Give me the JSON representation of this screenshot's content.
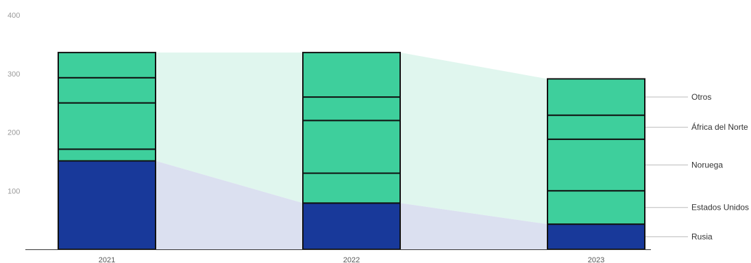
{
  "chart_data": {
    "type": "bar",
    "stacked": true,
    "categories": [
      "2021",
      "2022",
      "2023"
    ],
    "ylim": [
      0,
      400
    ],
    "yticks": [
      "100",
      "200",
      "300",
      "400"
    ],
    "grid": false,
    "legend_placement": "right",
    "series": [
      {
        "name": "Rusia",
        "values": [
          151,
          79,
          43
        ],
        "color": "#18399a"
      },
      {
        "name": "Estados Unidos",
        "values": [
          20,
          51,
          57
        ],
        "color": "#3ecf9c"
      },
      {
        "name": "Noruega",
        "values": [
          79,
          90,
          88
        ],
        "color": "#3ecf9c"
      },
      {
        "name": "África del Norte",
        "values": [
          43,
          40,
          41
        ],
        "color": "#3ecf9c"
      },
      {
        "name": "Otros",
        "values": [
          43,
          76,
          62
        ],
        "color": "#3ecf9c"
      }
    ],
    "colors": {
      "russia": "#18399a",
      "others": "#3ecf9c",
      "russia_band": "#dbe0f0",
      "others_band": "#e0f6ee",
      "outline": "#111111",
      "axis": "#333333",
      "legend_line": "#bbbbbb"
    }
  }
}
